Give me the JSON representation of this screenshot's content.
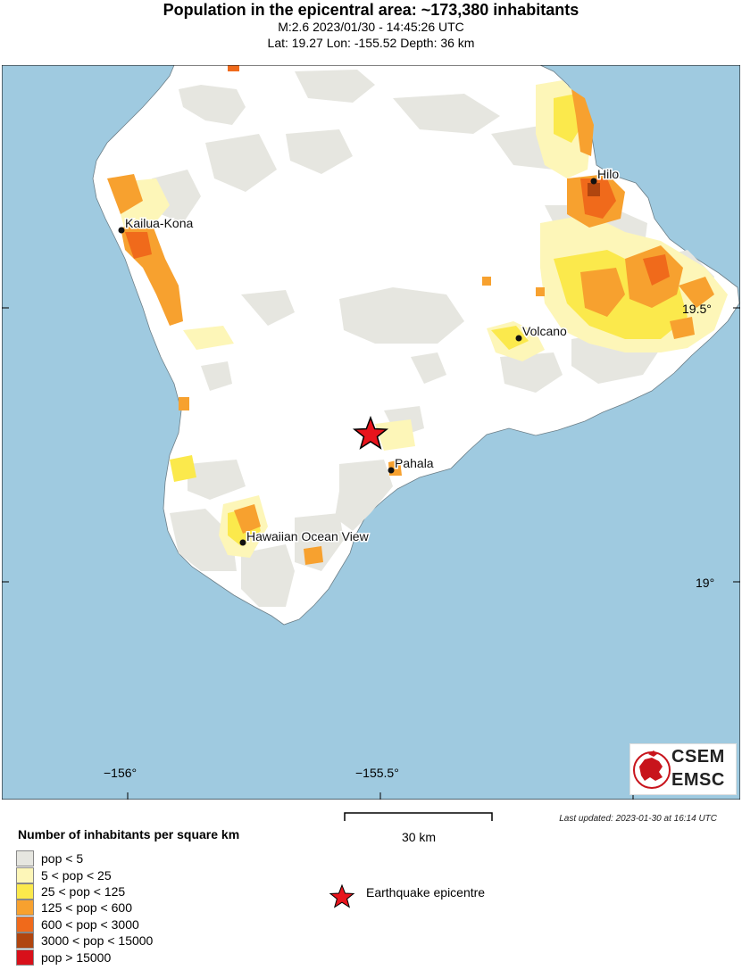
{
  "header": {
    "title": "Population in the epicentral area: ~173,380 inhabitants",
    "line1": "M:2.6 2023/01/30 - 14:45:26 UTC",
    "line2": "Lat: 19.27 Lon: -155.52 Depth: 36 km"
  },
  "map": {
    "ocean_color": "#9fcae0",
    "land_color": "#ffffff",
    "cities": [
      {
        "name": "Hilo"
      },
      {
        "name": "Kailua-Kona"
      },
      {
        "name": "Volcano"
      },
      {
        "name": "Pahala"
      },
      {
        "name": "Hawaiian Ocean View"
      }
    ],
    "lat_ticks": [
      "19.5°",
      "19°"
    ],
    "lon_ticks": [
      "−156°",
      "−155.5°"
    ],
    "epicentre_icon": "red-star-icon"
  },
  "scale": {
    "label": "30 km"
  },
  "last_updated": "Last updated: 2023-01-30 at 16:14 UTC",
  "legend": {
    "title": "Number of inhabitants per square km",
    "items": [
      {
        "label": "pop < 5",
        "color": "#e6e6e0"
      },
      {
        "label": "5 < pop < 25",
        "color": "#fdf6b8"
      },
      {
        "label": "25 < pop < 125",
        "color": "#fbe94c"
      },
      {
        "label": "125 < pop < 600",
        "color": "#f7a12f"
      },
      {
        "label": "600 < pop < 3000",
        "color": "#f06a1b"
      },
      {
        "label": "3000 < pop < 15000",
        "color": "#b0450f"
      },
      {
        "label": "pop > 15000",
        "color": "#d8101a"
      }
    ],
    "epicentre_label": "Earthquake epicentre"
  },
  "logo": {
    "line1": "CSEM",
    "line2": "EMSC"
  }
}
